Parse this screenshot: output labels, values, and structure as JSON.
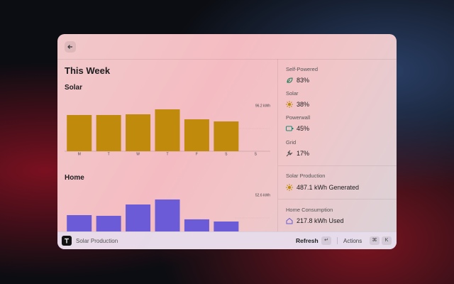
{
  "title": "This Week",
  "charts": [
    {
      "type": "bar",
      "title": "Solar",
      "categories": [
        "M",
        "T",
        "W",
        "T",
        "F",
        "S",
        "S"
      ],
      "values": [
        76.7,
        76.7,
        78.2,
        88.7,
        67.6,
        63.1,
        null
      ],
      "color": "#c08a0c",
      "ylim": [
        0,
        96.2
      ],
      "yticks": [
        {
          "value": 96.2,
          "label": "96.2 kWh"
        }
      ]
    },
    {
      "type": "bar",
      "title": "Home",
      "values": [
        29.6,
        28.8,
        41.9,
        47.7,
        24.7,
        22.2,
        null
      ],
      "color": "#6b5bd6",
      "ylim": [
        0,
        52.6
      ],
      "yticks": [
        {
          "value": 52.6,
          "label": "52.6 kWh"
        }
      ]
    }
  ],
  "stats": [
    {
      "label": "Self-Powered",
      "value": "83%"
    },
    {
      "label": "Solar",
      "value": "38%"
    },
    {
      "label": "Powerwall",
      "value": "45%"
    },
    {
      "label": "Grid",
      "value": "17%"
    }
  ],
  "production": {
    "label": "Solar Production",
    "value": "487.1 kWh Generated"
  },
  "consumption": {
    "label": "Home Consumption",
    "value": "217.8 kWh Used"
  },
  "footer": {
    "title": "Solar Production",
    "action": "Refresh",
    "action_key": "↵",
    "actions": "Actions",
    "keys": [
      "⌘",
      "K"
    ]
  }
}
